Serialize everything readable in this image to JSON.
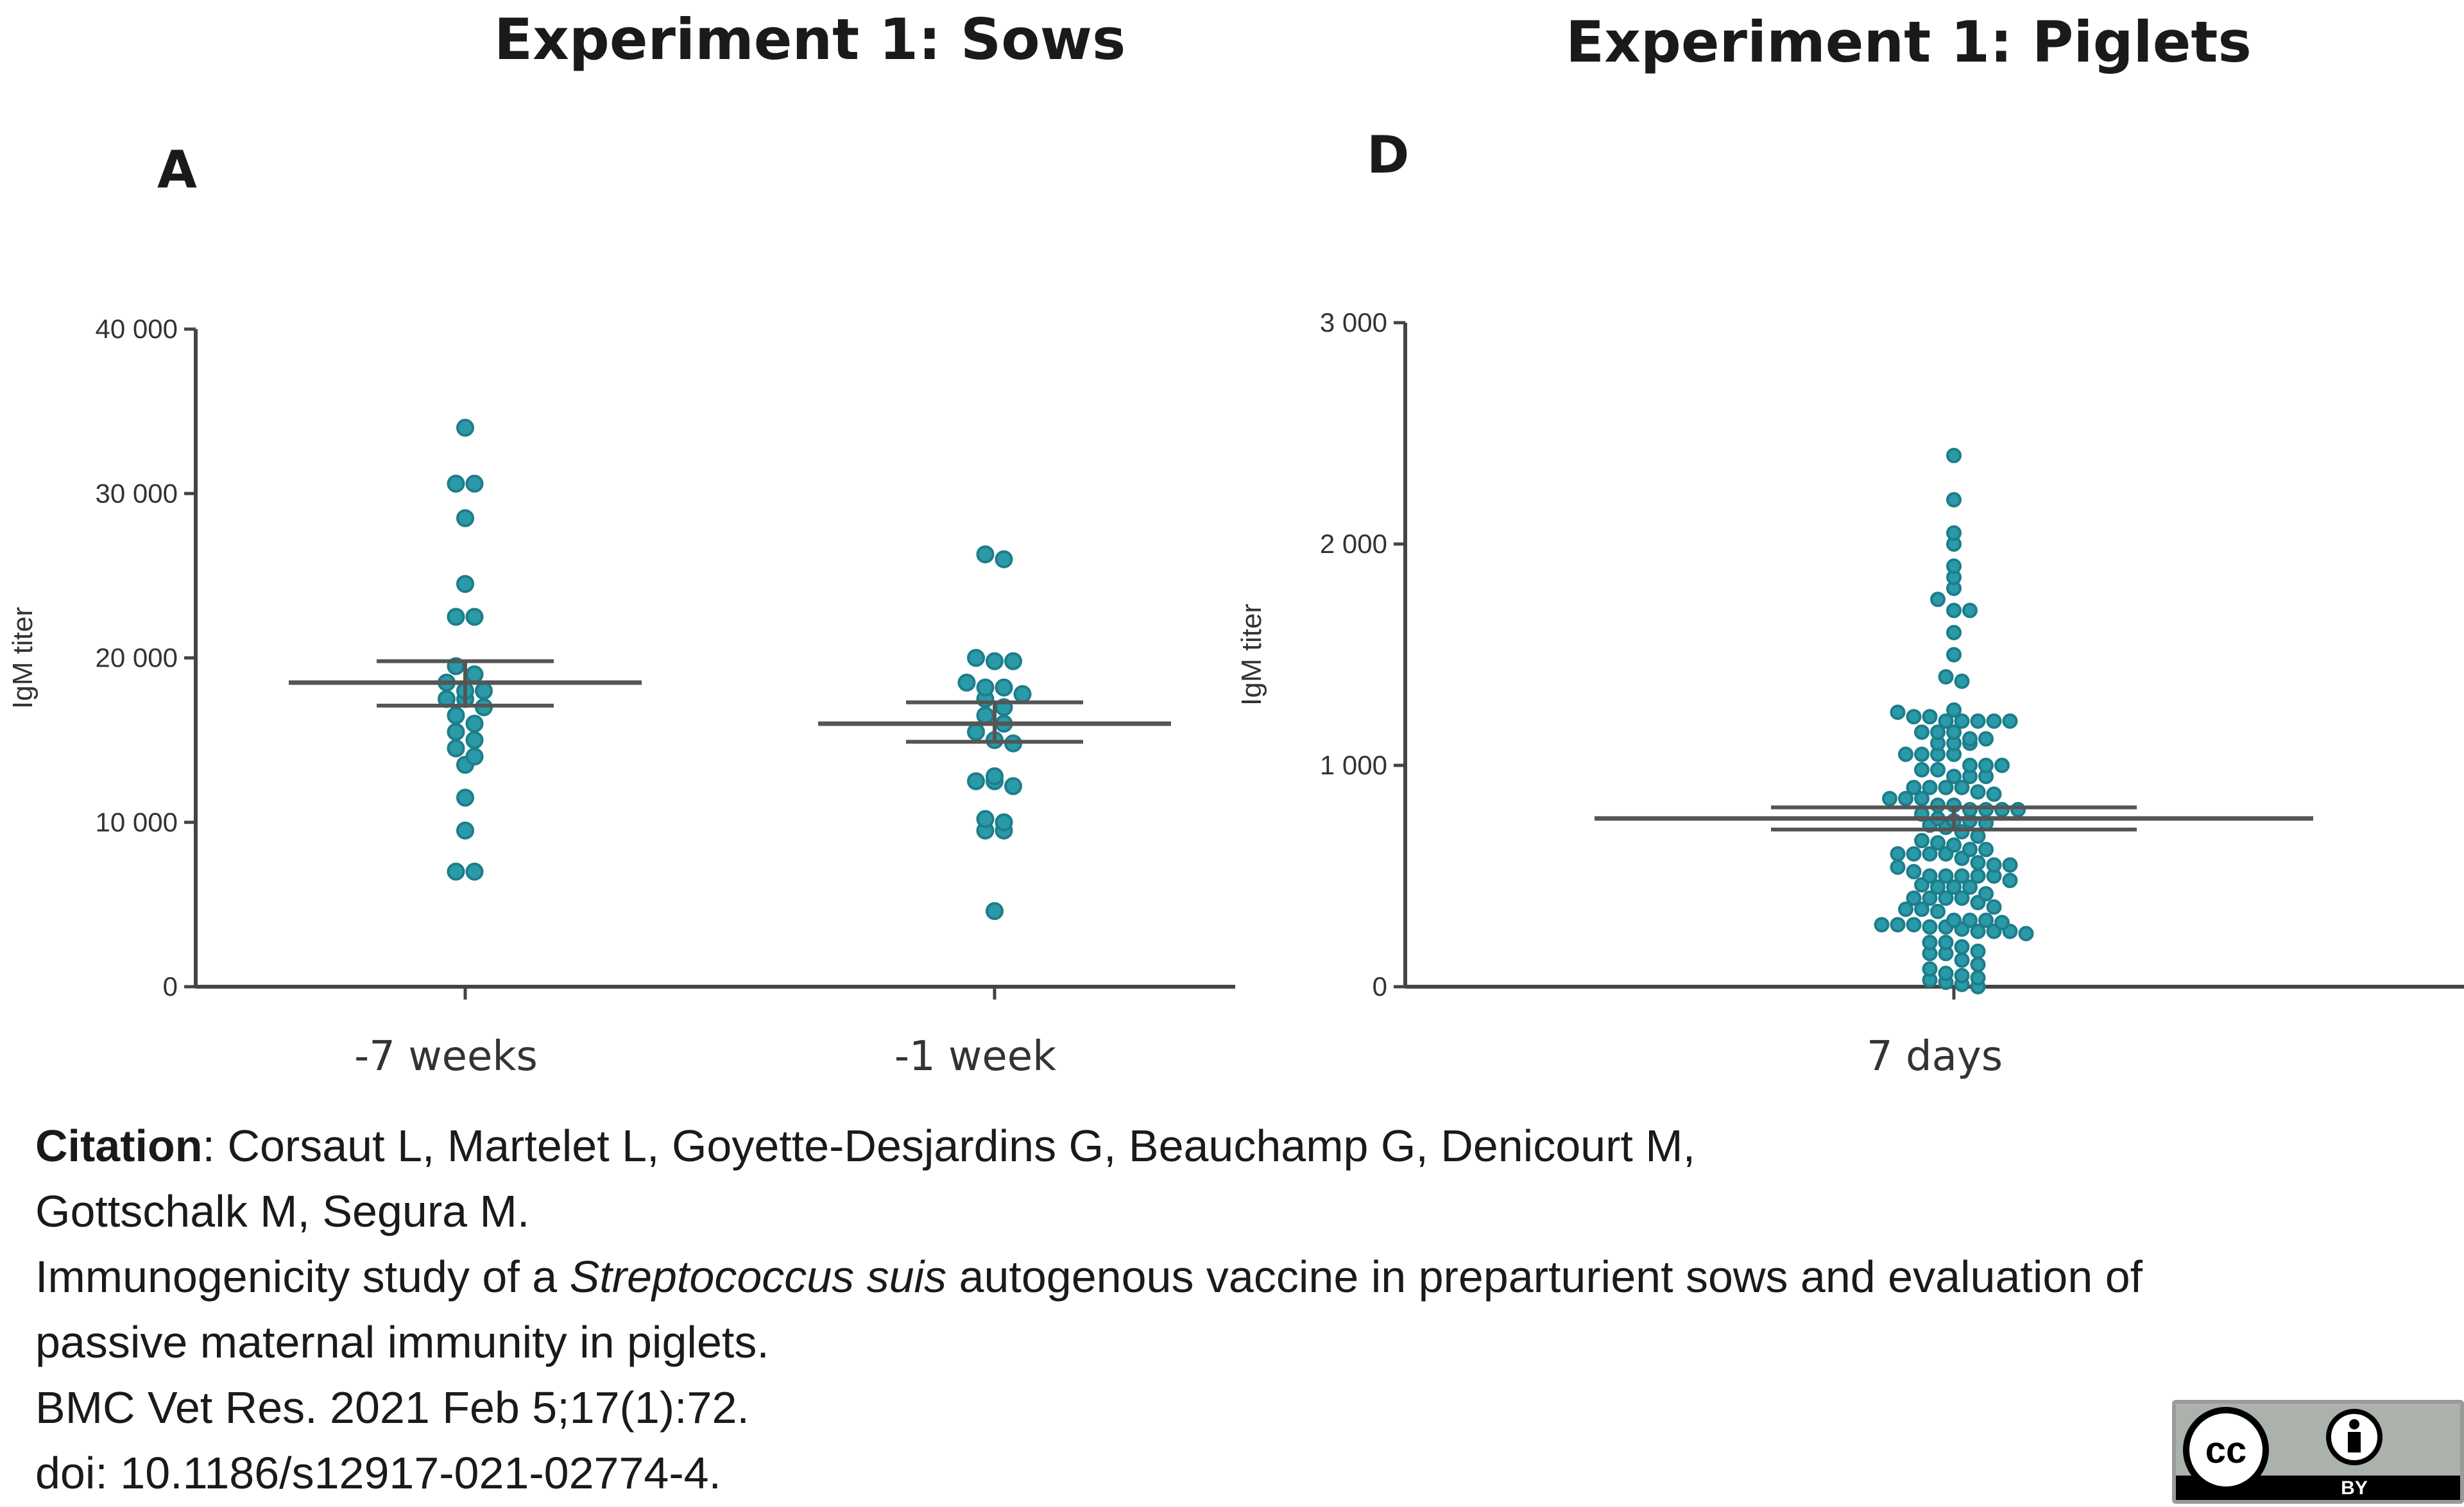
{
  "chart_data": [
    {
      "type": "scatter",
      "panel": "A",
      "title": "Experiment 1: Sows",
      "xlabel": "",
      "ylabel": "IgM titer",
      "ylim": [
        0,
        40000
      ],
      "yticks": [
        0,
        10000,
        20000,
        30000,
        40000
      ],
      "ytick_labels": [
        "0",
        "10 000",
        "20 000",
        "30 000",
        "40 000"
      ],
      "categories": [
        "-7 weeks",
        "-1 week"
      ],
      "series": [
        {
          "name": "-7 weeks",
          "mean": 18500,
          "sem_low": 17100,
          "sem_high": 19800,
          "values": [
            34000,
            30600,
            30600,
            28500,
            24500,
            22500,
            22500,
            19500,
            19000,
            18500,
            18000,
            18000,
            17500,
            17500,
            17000,
            16500,
            16000,
            15500,
            15000,
            14500,
            14000,
            13500,
            11500,
            9500,
            7000,
            7000
          ]
        },
        {
          "name": "-1 week",
          "mean": 16000,
          "sem_low": 14900,
          "sem_high": 17300,
          "values": [
            26300,
            26000,
            20000,
            19800,
            19800,
            18500,
            18200,
            18200,
            17800,
            17500,
            17000,
            16500,
            16000,
            15500,
            15000,
            14800,
            12800,
            12500,
            12500,
            12200,
            10200,
            10000,
            9500,
            9500,
            4600
          ]
        }
      ]
    },
    {
      "type": "scatter",
      "panel": "D",
      "title": "Experiment 1: Piglets",
      "xlabel": "",
      "ylabel": "IgM titer",
      "ylim": [
        0,
        3000
      ],
      "yticks": [
        0,
        1000,
        2000,
        3000
      ],
      "ytick_labels": [
        "0",
        "1 000",
        "2 000",
        "3 000"
      ],
      "categories": [
        "7 days"
      ],
      "series": [
        {
          "name": "7 days",
          "mean": 760,
          "sem_low": 710,
          "sem_high": 810,
          "values": [
            2400,
            2200,
            2050,
            2000,
            1900,
            1850,
            1800,
            1750,
            1700,
            1700,
            1600,
            1500,
            1400,
            1380,
            1250,
            1240,
            1220,
            1220,
            1200,
            1200,
            1200,
            1200,
            1200,
            1150,
            1150,
            1150,
            1120,
            1120,
            1100,
            1100,
            1100,
            1050,
            1050,
            1050,
            1050,
            1000,
            1000,
            1000,
            980,
            980,
            950,
            950,
            950,
            900,
            900,
            900,
            900,
            880,
            870,
            850,
            850,
            850,
            820,
            820,
            800,
            800,
            800,
            800,
            780,
            760,
            750,
            750,
            740,
            730,
            720,
            700,
            680,
            660,
            650,
            640,
            620,
            620,
            600,
            600,
            600,
            600,
            580,
            560,
            550,
            550,
            540,
            520,
            500,
            500,
            500,
            500,
            500,
            480,
            460,
            450,
            450,
            450,
            420,
            400,
            400,
            400,
            400,
            380,
            360,
            350,
            350,
            340,
            300,
            300,
            300,
            290,
            280,
            280,
            280,
            270,
            270,
            260,
            250,
            250,
            250,
            240,
            200,
            200,
            180,
            160,
            150,
            150,
            120,
            100,
            80,
            60,
            50,
            40,
            30,
            20,
            10,
            0
          ]
        }
      ]
    }
  ],
  "citation": {
    "label": "Citation",
    "authors_line1": "Corsaut L, Martelet L, Goyette-Desjardins G, Beauchamp G, Denicourt M,",
    "authors_line2": "Gottschalk M, Segura M.",
    "title_prefix": "Immunogenicity study of a ",
    "title_species": "Streptococcus suis",
    "title_suffix": " autogenous vaccine in preparturient sows and evaluation of",
    "title_line2": "passive maternal immunity in piglets.",
    "journal": "BMC Vet Res. 2021 Feb 5;17(1):72.",
    "doi": "doi: 10.1186/s12917-021-02774-4."
  },
  "license_badge": {
    "cc": "cc",
    "by": "BY"
  },
  "colors": {
    "dot": "#2a9aa8",
    "dot_edge": "#1e7d8a",
    "axis": "#444444",
    "bar": "#555555"
  }
}
